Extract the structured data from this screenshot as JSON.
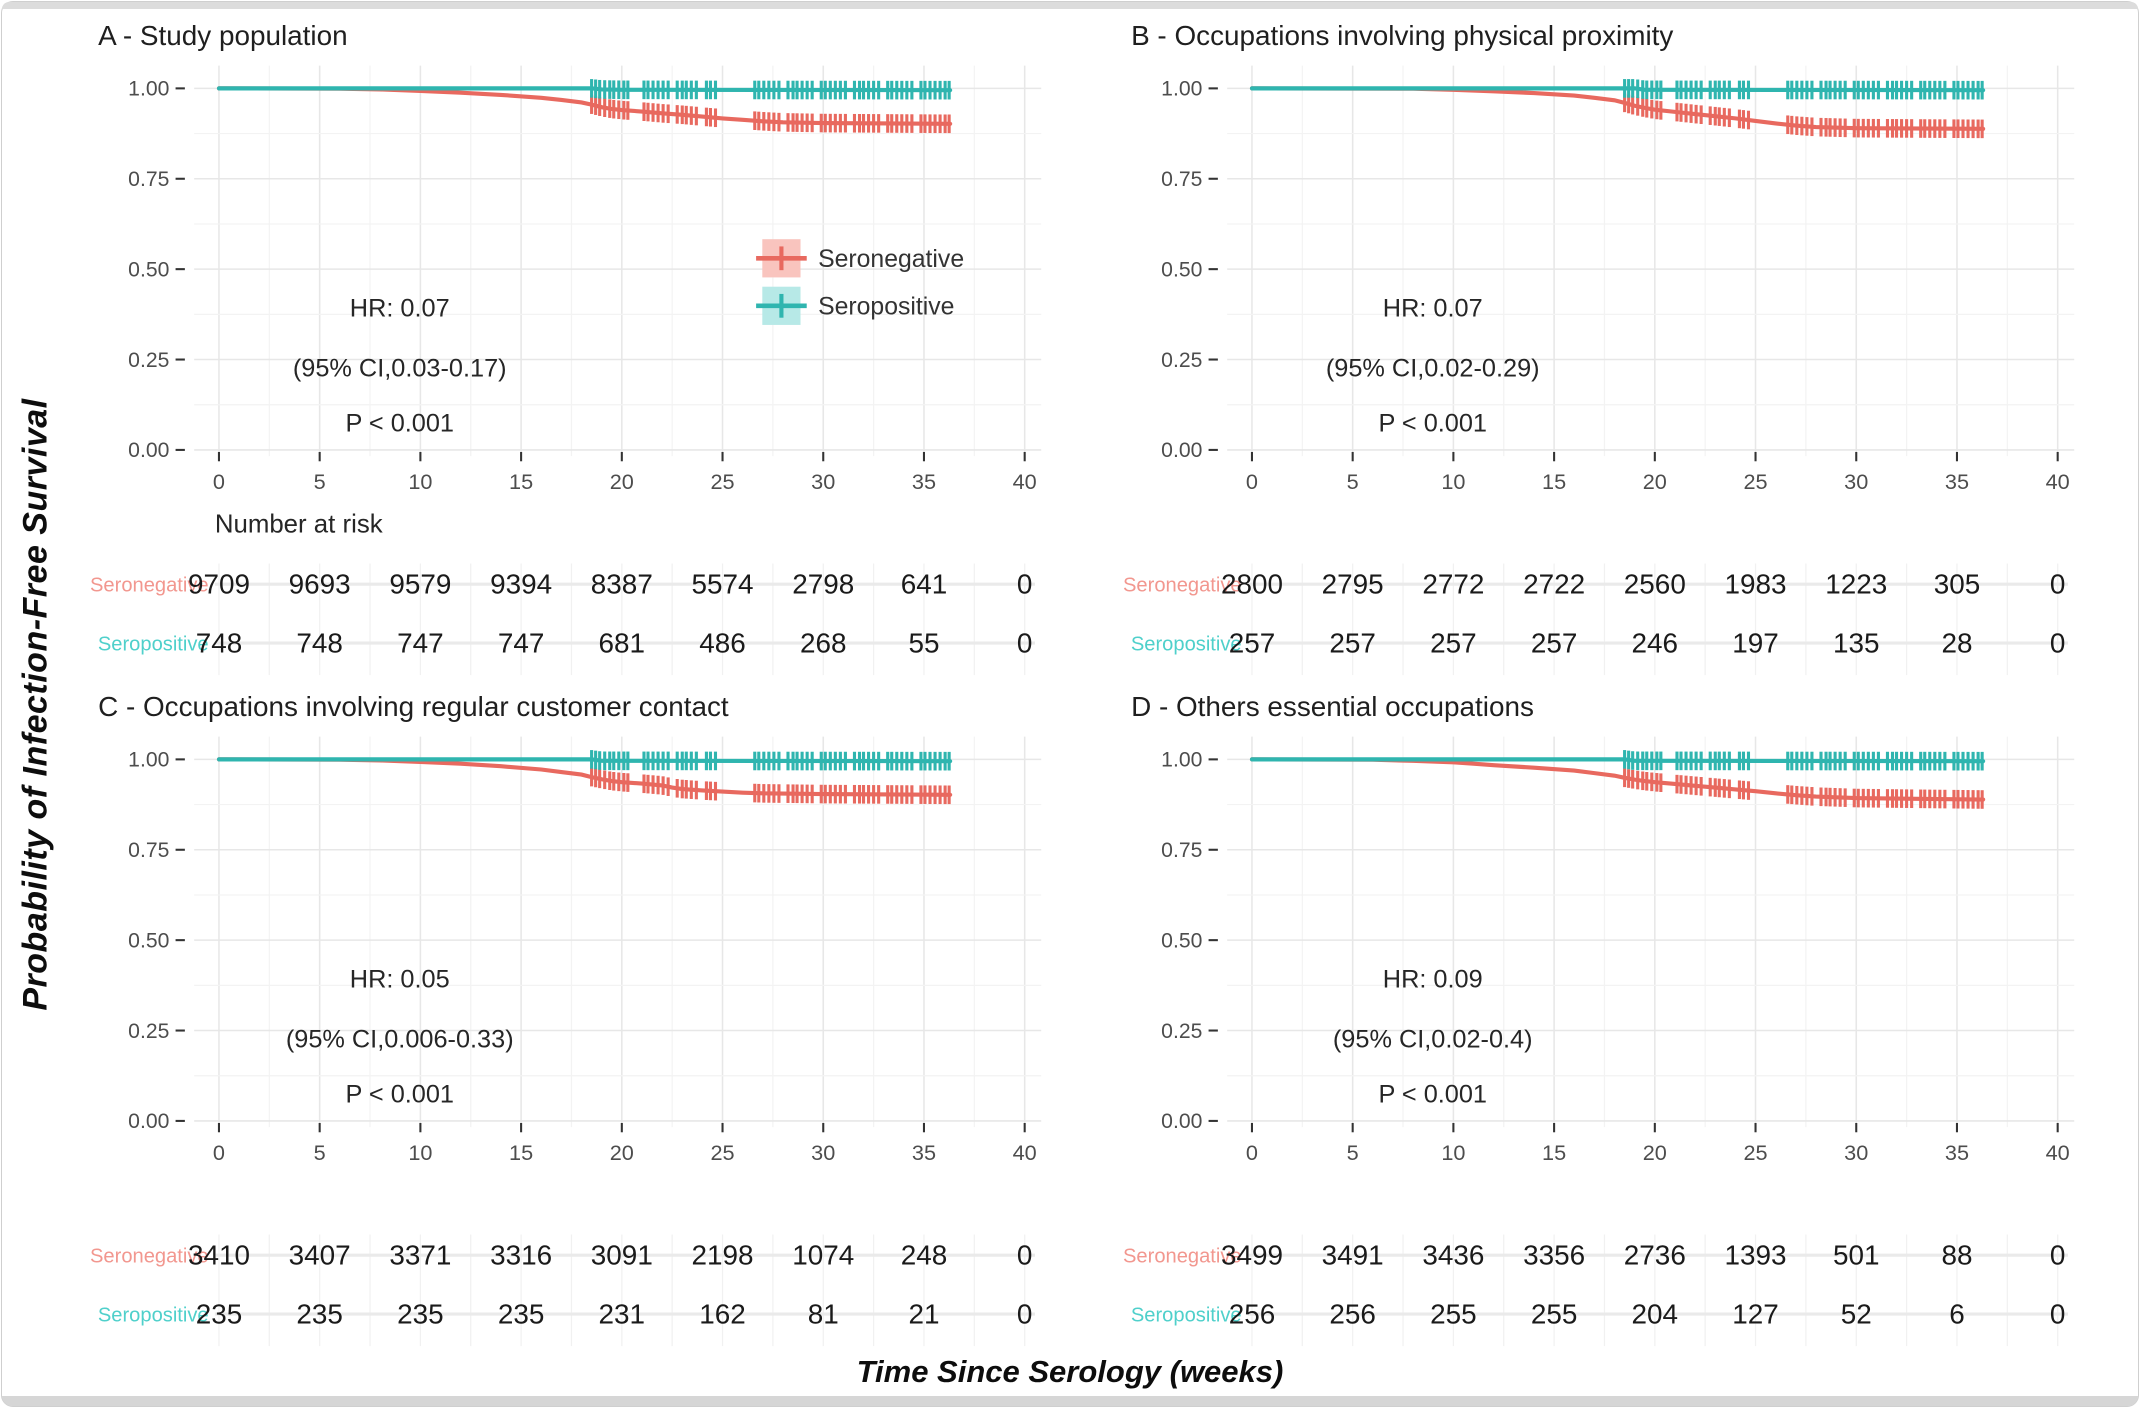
{
  "figure": {
    "y_axis_label": "Probability of Infection-Free Survival",
    "x_axis_label": "Time Since Serology (weeks)",
    "number_at_risk_label": "Number at risk",
    "legend": {
      "seronegative": "Seronegative",
      "seropositive": "Seropositive"
    },
    "colors": {
      "seronegative": "#E8695F",
      "seropositive": "#2FB5AF",
      "seronegative_fill": "#F9C4BE",
      "seropositive_fill": "#B7E9E7",
      "seronegative_label": "#F2978F",
      "seropositive_label": "#4FD0CB",
      "tick_label": "#4d4d4d",
      "risk_number": "#1a1a1a"
    },
    "x_ticks": [
      0,
      5,
      10,
      15,
      20,
      25,
      30,
      35,
      40
    ],
    "y_ticks": [
      {
        "v": 0.0,
        "label": "0.00"
      },
      {
        "v": 0.25,
        "label": "0.25"
      },
      {
        "v": 0.5,
        "label": "0.50"
      },
      {
        "v": 0.75,
        "label": "0.75"
      },
      {
        "v": 1.0,
        "label": "1.00"
      }
    ],
    "censor_weeks": [
      18.5,
      18.7,
      18.9,
      19.15,
      19.4,
      19.6,
      19.85,
      20.1,
      20.3,
      21.1,
      21.3,
      21.55,
      21.8,
      22.05,
      22.3,
      22.75,
      23.0,
      23.2,
      23.45,
      23.7,
      24.2,
      24.4,
      24.65,
      26.6,
      26.8,
      27.05,
      27.3,
      27.55,
      27.8,
      28.25,
      28.5,
      28.7,
      28.95,
      29.2,
      29.45,
      29.9,
      30.1,
      30.35,
      30.6,
      30.85,
      31.1,
      31.55,
      31.8,
      32.0,
      32.25,
      32.5,
      32.75,
      33.2,
      33.4,
      33.65,
      33.9,
      34.15,
      34.4,
      34.85,
      35.05,
      35.3,
      35.55,
      35.8,
      36.05,
      36.25
    ]
  },
  "chart_data": [
    {
      "type": "line",
      "title": "A - Study population",
      "xlabel": "Time Since Serology (weeks)",
      "ylabel": "Probability of Infection-Free Survival",
      "xlim": [
        0,
        40
      ],
      "ylim": [
        0,
        1
      ],
      "annotation": {
        "hr": "HR: 0.07",
        "ci": "(95% CI,0.03-0.17)",
        "p": "P < 0.001"
      },
      "show_legend": true,
      "show_number_at_risk": true,
      "series": [
        {
          "key": "seronegative",
          "name": "Seronegative",
          "points": [
            [
              0,
              1.0
            ],
            [
              6,
              0.999
            ],
            [
              8,
              0.997
            ],
            [
              10,
              0.993
            ],
            [
              12,
              0.988
            ],
            [
              14,
              0.982
            ],
            [
              16,
              0.974
            ],
            [
              17,
              0.968
            ],
            [
              18,
              0.961
            ],
            [
              18.5,
              0.955
            ],
            [
              19,
              0.948
            ],
            [
              19.5,
              0.943
            ],
            [
              20,
              0.94
            ],
            [
              21,
              0.936
            ],
            [
              22,
              0.931
            ],
            [
              23,
              0.927
            ],
            [
              24,
              0.922
            ],
            [
              25,
              0.917
            ],
            [
              26,
              0.913
            ],
            [
              27,
              0.909
            ],
            [
              28,
              0.906
            ],
            [
              30,
              0.904
            ],
            [
              36.3,
              0.902
            ]
          ]
        },
        {
          "key": "seropositive",
          "name": "Seropositive",
          "points": [
            [
              0,
              1.0
            ],
            [
              18.5,
              1.0
            ],
            [
              19,
              0.997
            ],
            [
              20,
              0.996
            ],
            [
              36.3,
              0.995
            ]
          ]
        }
      ],
      "risk_table": {
        "rows": [
          {
            "key": "seronegative",
            "label": "Seronegative",
            "values": [
              9709,
              9693,
              9579,
              9394,
              8387,
              5574,
              2798,
              641,
              0
            ]
          },
          {
            "key": "seropositive",
            "label": "Seropositive",
            "values": [
              748,
              748,
              747,
              747,
              681,
              486,
              268,
              55,
              0
            ]
          }
        ]
      }
    },
    {
      "type": "line",
      "title": "B - Occupations involving physical proximity",
      "xlabel": "Time Since Serology (weeks)",
      "ylabel": "Probability of Infection-Free Survival",
      "xlim": [
        0,
        40
      ],
      "ylim": [
        0,
        1
      ],
      "annotation": {
        "hr": "HR: 0.07",
        "ci": "(95% CI,0.02-0.29)",
        "p": "P < 0.001"
      },
      "show_legend": false,
      "show_number_at_risk": false,
      "series": [
        {
          "key": "seronegative",
          "name": "Seronegative",
          "points": [
            [
              0,
              1.0
            ],
            [
              8,
              0.999
            ],
            [
              10,
              0.996
            ],
            [
              12,
              0.992
            ],
            [
              14,
              0.987
            ],
            [
              16,
              0.98
            ],
            [
              17,
              0.974
            ],
            [
              18,
              0.967
            ],
            [
              18.5,
              0.96
            ],
            [
              19,
              0.952
            ],
            [
              19.5,
              0.946
            ],
            [
              20,
              0.941
            ],
            [
              21,
              0.935
            ],
            [
              22,
              0.929
            ],
            [
              23,
              0.923
            ],
            [
              24,
              0.917
            ],
            [
              25,
              0.91
            ],
            [
              26,
              0.903
            ],
            [
              27,
              0.897
            ],
            [
              28,
              0.893
            ],
            [
              30,
              0.89
            ],
            [
              36.3,
              0.888
            ]
          ]
        },
        {
          "key": "seropositive",
          "name": "Seropositive",
          "points": [
            [
              0,
              1.0
            ],
            [
              19,
              1.0
            ],
            [
              19.5,
              0.996
            ],
            [
              36.3,
              0.995
            ]
          ]
        }
      ],
      "risk_table": {
        "rows": [
          {
            "key": "seronegative",
            "label": "Seronegative",
            "values": [
              2800,
              2795,
              2772,
              2722,
              2560,
              1983,
              1223,
              305,
              0
            ]
          },
          {
            "key": "seropositive",
            "label": "Seropositive",
            "values": [
              257,
              257,
              257,
              257,
              246,
              197,
              135,
              28,
              0
            ]
          }
        ]
      }
    },
    {
      "type": "line",
      "title": "C - Occupations involving regular customer contact",
      "xlabel": "Time Since Serology (weeks)",
      "ylabel": "Probability of Infection-Free Survival",
      "xlim": [
        0,
        40
      ],
      "ylim": [
        0,
        1
      ],
      "annotation": {
        "hr": "HR: 0.05",
        "ci": "(95% CI,0.006-0.33)",
        "p": "P < 0.001"
      },
      "show_legend": false,
      "show_number_at_risk": false,
      "series": [
        {
          "key": "seronegative",
          "name": "Seronegative",
          "points": [
            [
              0,
              1.0
            ],
            [
              6,
              0.999
            ],
            [
              8,
              0.997
            ],
            [
              10,
              0.993
            ],
            [
              12,
              0.988
            ],
            [
              14,
              0.981
            ],
            [
              16,
              0.972
            ],
            [
              17,
              0.965
            ],
            [
              18,
              0.958
            ],
            [
              18.5,
              0.951
            ],
            [
              19,
              0.945
            ],
            [
              19.5,
              0.94
            ],
            [
              20,
              0.937
            ],
            [
              21,
              0.933
            ],
            [
              22,
              0.928
            ],
            [
              22.5,
              0.922
            ],
            [
              23,
              0.918
            ],
            [
              24,
              0.914
            ],
            [
              25,
              0.911
            ],
            [
              26,
              0.908
            ],
            [
              27,
              0.906
            ],
            [
              30,
              0.904
            ],
            [
              36.3,
              0.902
            ]
          ]
        },
        {
          "key": "seropositive",
          "name": "Seropositive",
          "points": [
            [
              0,
              1.0
            ],
            [
              18.5,
              1.0
            ],
            [
              19,
              0.996
            ],
            [
              36.3,
              0.995
            ]
          ]
        }
      ],
      "risk_table": {
        "rows": [
          {
            "key": "seronegative",
            "label": "Seronegative",
            "values": [
              3410,
              3407,
              3371,
              3316,
              3091,
              2198,
              1074,
              248,
              0
            ]
          },
          {
            "key": "seropositive",
            "label": "Seropositive",
            "values": [
              235,
              235,
              235,
              235,
              231,
              162,
              81,
              21,
              0
            ]
          }
        ]
      }
    },
    {
      "type": "line",
      "title": "D - Others essential occupations",
      "xlabel": "Time Since Serology (weeks)",
      "ylabel": "Probability of Infection-Free Survival",
      "xlim": [
        0,
        40
      ],
      "ylim": [
        0,
        1
      ],
      "annotation": {
        "hr": "HR: 0.09",
        "ci": "(95% CI,0.02-0.4)",
        "p": "P < 0.001"
      },
      "show_legend": false,
      "show_number_at_risk": false,
      "series": [
        {
          "key": "seronegative",
          "name": "Seronegative",
          "points": [
            [
              0,
              1.0
            ],
            [
              6,
              0.999
            ],
            [
              8,
              0.996
            ],
            [
              10,
              0.992
            ],
            [
              11,
              0.988
            ],
            [
              12,
              0.984
            ],
            [
              14,
              0.977
            ],
            [
              16,
              0.969
            ],
            [
              17,
              0.962
            ],
            [
              18,
              0.955
            ],
            [
              18.5,
              0.949
            ],
            [
              19,
              0.944
            ],
            [
              19.5,
              0.94
            ],
            [
              20,
              0.937
            ],
            [
              21,
              0.932
            ],
            [
              22,
              0.927
            ],
            [
              23,
              0.922
            ],
            [
              24,
              0.917
            ],
            [
              25,
              0.912
            ],
            [
              26,
              0.906
            ],
            [
              27,
              0.901
            ],
            [
              28,
              0.897
            ],
            [
              30,
              0.893
            ],
            [
              33,
              0.891
            ],
            [
              36.3,
              0.889
            ]
          ]
        },
        {
          "key": "seropositive",
          "name": "Seropositive",
          "points": [
            [
              0,
              1.0
            ],
            [
              18.5,
              1.0
            ],
            [
              19,
              0.996
            ],
            [
              36.3,
              0.995
            ]
          ]
        }
      ],
      "risk_table": {
        "rows": [
          {
            "key": "seronegative",
            "label": "Seronegative",
            "values": [
              3499,
              3491,
              3436,
              3356,
              2736,
              1393,
              501,
              88,
              0
            ]
          },
          {
            "key": "seropositive",
            "label": "Seropositive",
            "values": [
              256,
              256,
              255,
              255,
              204,
              127,
              52,
              6,
              0
            ]
          }
        ]
      }
    }
  ]
}
